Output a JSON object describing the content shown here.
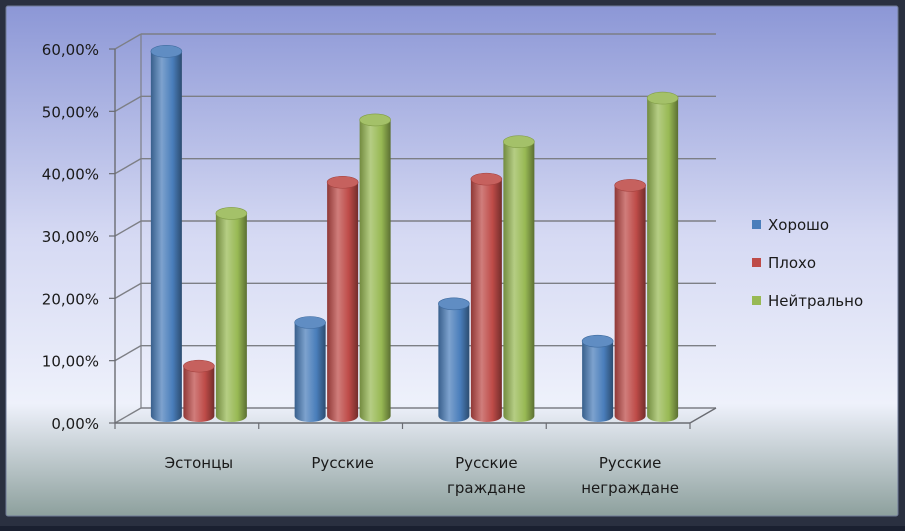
{
  "chart_data": {
    "type": "bar",
    "categories": [
      "Эстонцы",
      "Русские",
      "Русские граждане",
      "Русские неграждане"
    ],
    "category_lines": [
      [
        "Эстонцы"
      ],
      [
        "Русские"
      ],
      [
        "Русские",
        "граждане"
      ],
      [
        "Русские",
        "неграждане"
      ]
    ],
    "series": [
      {
        "name": "Хорошо",
        "values": [
          58.5,
          15.0,
          18.0,
          12.0
        ],
        "color": "#4a7ebb"
      },
      {
        "name": "Плохо",
        "values": [
          8.0,
          37.5,
          38.0,
          37.0
        ],
        "color": "#be4b48"
      },
      {
        "name": "Нейтрально",
        "values": [
          32.5,
          47.5,
          44.0,
          51.0
        ],
        "color": "#98b954"
      }
    ],
    "y_ticks": [
      "0,00%",
      "10,00%",
      "20,00%",
      "30,00%",
      "40,00%",
      "50,00%",
      "60,00%"
    ],
    "ylim": [
      0,
      60
    ],
    "grid": true,
    "legend_position": "right",
    "style": "3d-cylinder",
    "background": {
      "top": "#8f9ad8",
      "middle": "#eef0fb",
      "bottom": "#8fa29f"
    }
  }
}
